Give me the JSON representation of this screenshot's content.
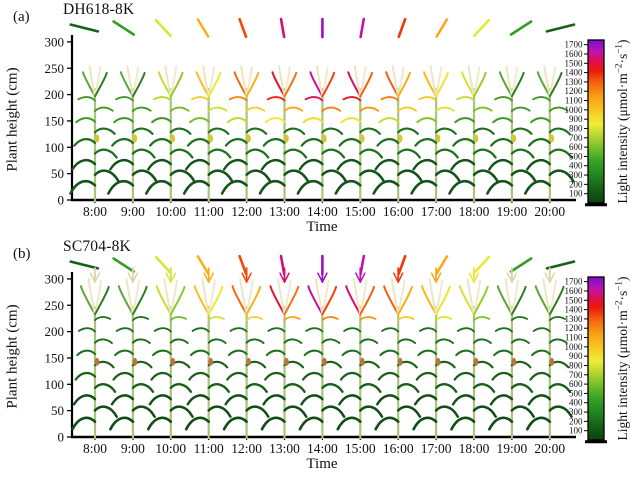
{
  "chart_data": {
    "type": "plant-light-visualization",
    "description": "Two stacked panels of 13 simulated maize plants (one per hour) colored by light intensity, with a sun-ray direction indicator above each plant and a shared light-intensity colorbar.",
    "shared": {
      "xlabel": "Time",
      "ylabel": "Plant height (cm)",
      "x_ticks": [
        "8:00",
        "9:00",
        "10:00",
        "11:00",
        "12:00",
        "13:00",
        "14:00",
        "15:00",
        "16:00",
        "17:00",
        "18:00",
        "19:00",
        "20:00"
      ],
      "y_ticks": [
        0,
        50,
        100,
        150,
        200,
        250,
        300
      ],
      "ylim": [
        0,
        320
      ],
      "sun_ray_angles_deg": [
        14,
        33,
        47,
        59,
        70,
        80,
        90,
        100,
        110,
        121,
        133,
        147,
        166
      ],
      "colorbar": {
        "label": "Light intensity (μmol·m⁻²·s⁻¹)",
        "label_parts": {
          "prefix": "Light intensity (μmol·m",
          "sup1": "−2",
          "mid": "·s",
          "sup2": "−1",
          "suffix": ")"
        },
        "ticks": [
          100,
          200,
          300,
          400,
          500,
          600,
          700,
          800,
          900,
          1000,
          1100,
          1200,
          1300,
          1400,
          1500,
          1600,
          1700
        ],
        "range": [
          0,
          1750
        ],
        "colormap_stops": [
          [
            0,
            "#0a4212"
          ],
          [
            150,
            "#166018"
          ],
          [
            300,
            "#23841f"
          ],
          [
            450,
            "#37a326"
          ],
          [
            600,
            "#7cc02c"
          ],
          [
            750,
            "#c3da33"
          ],
          [
            850,
            "#f0ec38"
          ],
          [
            1000,
            "#f8c61f"
          ],
          [
            1150,
            "#f89d15"
          ],
          [
            1300,
            "#f45f0e"
          ],
          [
            1420,
            "#ec1b07"
          ],
          [
            1520,
            "#e00d4e"
          ],
          [
            1620,
            "#c013ab"
          ],
          [
            1750,
            "#7a10d0"
          ]
        ]
      }
    },
    "panels": [
      {
        "id": "a",
        "panel_label": "(a)",
        "title": "DH618-8K",
        "plant_height_cm": 265,
        "leaf_tiers": 9,
        "leaf_len": 24,
        "has_tassel": false,
        "ear_rel": 0.44,
        "ear_color": "#dcc431",
        "leaf_colors": [
          "#14531a",
          "#1f701d",
          "#3f9727"
        ],
        "accent_tiers": {
          "6": 0.55,
          "7": 0.72,
          "8": 0.9
        },
        "sun_intensity_by_time": [
          150,
          420,
          800,
          1080,
          1340,
          1560,
          1690,
          1620,
          1370,
          1110,
          830,
          430,
          150
        ]
      },
      {
        "id": "b",
        "panel_label": "(b)",
        "title": "SC704-8K",
        "plant_height_cm": 310,
        "leaf_tiers": 10,
        "leaf_len": 22,
        "has_tassel": true,
        "ear_rel": 0.46,
        "ear_color": "#b9743e",
        "leaf_colors": [
          "#124c17",
          "#185f18",
          "#1f701d"
        ],
        "accent_tiers": {
          "9": 0.72
        },
        "sun_intensity_by_time": [
          150,
          420,
          800,
          1080,
          1340,
          1560,
          1690,
          1620,
          1370,
          1110,
          830,
          430,
          150
        ]
      }
    ]
  }
}
